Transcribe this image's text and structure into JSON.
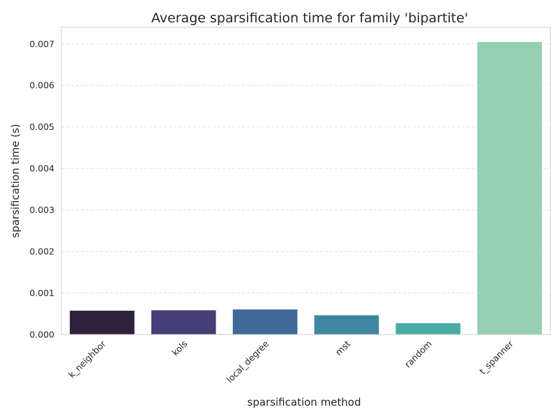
{
  "chart_data": {
    "type": "bar",
    "title": "Average sparsification time for family 'bipartite'",
    "xlabel": "sparsification method",
    "ylabel": "sparsification time (s)",
    "categories": [
      "k_neighbor",
      "kols",
      "local_degree",
      "mst",
      "random",
      "t_spanner"
    ],
    "values": [
      0.00058,
      0.00059,
      0.00061,
      0.00047,
      0.00028,
      0.00705
    ],
    "colors": [
      "#2e2139",
      "#453e77",
      "#3f6a97",
      "#3d88a0",
      "#4aaca7",
      "#94cfb2"
    ],
    "ylim": [
      0,
      0.0074
    ],
    "yticks": [
      "0.000",
      "0.001",
      "0.002",
      "0.003",
      "0.004",
      "0.005",
      "0.006",
      "0.007"
    ],
    "grid": "y-dashed"
  }
}
